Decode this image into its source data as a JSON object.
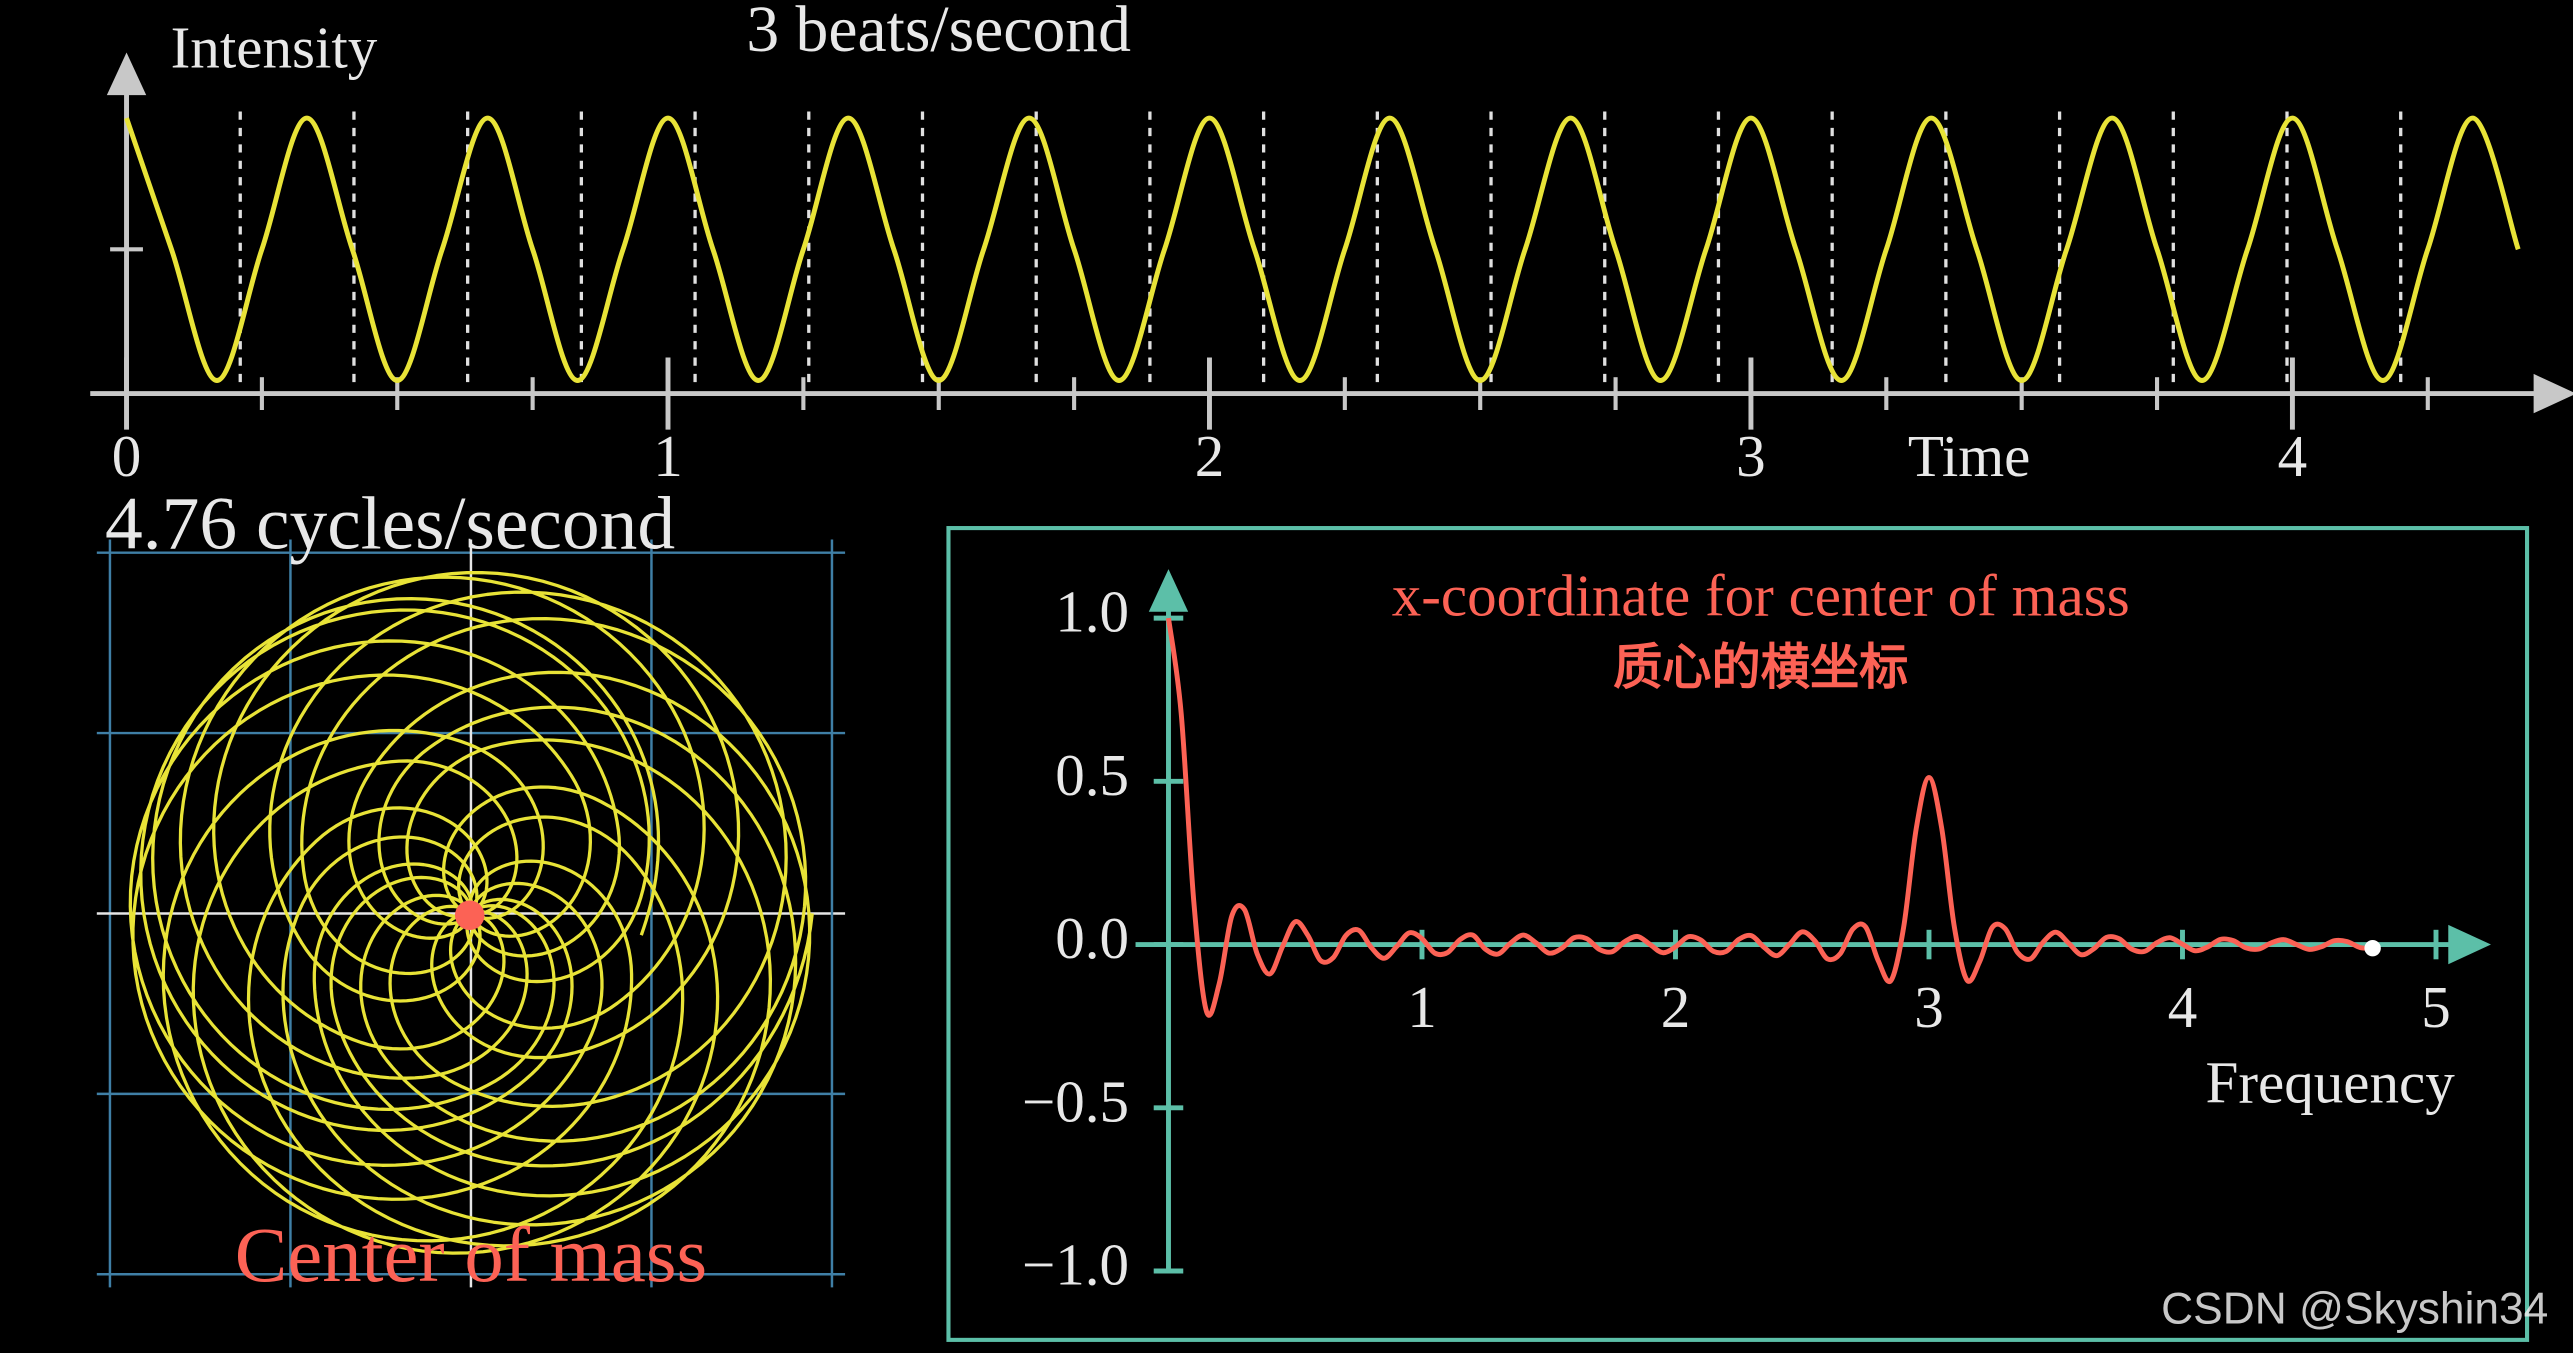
{
  "chart_data": [
    {
      "type": "line",
      "title": "3 beats/second",
      "ylabel": "Intensity",
      "xlabel": "Time",
      "x": [
        0,
        0.083,
        0.167,
        0.25,
        0.333,
        0.417,
        0.5,
        0.583,
        0.667,
        0.75,
        0.833,
        0.917,
        1,
        1.083,
        1.167,
        1.25,
        1.333,
        1.417,
        1.5,
        1.583,
        1.667,
        1.75,
        1.833,
        1.917,
        2,
        2.083,
        2.167,
        2.25,
        2.333,
        2.417,
        2.5,
        2.583,
        2.667,
        2.75,
        2.833,
        2.917,
        3,
        3.083,
        3.167,
        3.25,
        3.333,
        3.417,
        3.5,
        3.583,
        3.667,
        3.75,
        3.833,
        3.917,
        4,
        4.083,
        4.167,
        4.25,
        4.333,
        4.417
      ],
      "values": [
        1,
        0.5,
        0,
        0.5,
        1,
        0.5,
        0,
        0.5,
        1,
        0.5,
        0,
        0.5,
        1,
        0.5,
        0,
        0.5,
        1,
        0.5,
        0,
        0.5,
        1,
        0.5,
        0,
        0.5,
        1,
        0.5,
        0,
        0.5,
        1,
        0.5,
        0,
        0.5,
        1,
        0.5,
        0,
        0.5,
        1,
        0.5,
        0,
        0.5,
        1,
        0.5,
        0,
        0.5,
        1,
        0.5,
        0,
        0.5,
        1,
        0.5,
        0,
        0.5,
        1,
        0.5
      ],
      "color": "#e8e337",
      "axis_color": "#c8c8c8",
      "xlim": [
        -0.067,
        4.5
      ],
      "ylim": [
        -0.05,
        1.2
      ],
      "xticks": [
        0,
        1,
        2,
        3,
        4
      ],
      "minor_xticks": [
        0.25,
        0.5,
        0.75,
        1.25,
        1.5,
        1.75,
        2.25,
        2.5,
        2.75,
        3.25,
        3.5,
        3.75,
        4.25
      ],
      "minor_yticks": [
        0.5
      ],
      "vlines": [
        0.21,
        0.42,
        0.63,
        0.84,
        1.05,
        1.26,
        1.47,
        1.68,
        1.89,
        2.1,
        2.31,
        2.52,
        2.73,
        2.94,
        3.15,
        3.36,
        3.57,
        3.78,
        3.99,
        4.2
      ]
    },
    {
      "type": "winding",
      "title": "4.76 cycles/second",
      "frequency": 4.76,
      "annotation": "Center of mass",
      "color": "#e8e337",
      "marker_color": "#fc6255",
      "grid": true
    },
    {
      "type": "line",
      "title": "x-coordinate for center of mass",
      "subtitle": "质心的横坐标",
      "xlabel": "Frequency",
      "x": [
        0,
        0.05,
        0.1,
        0.15,
        0.2,
        0.25,
        0.3,
        0.35,
        0.4,
        0.45,
        0.5,
        0.55,
        0.6,
        0.65,
        0.7,
        0.75,
        0.8,
        0.85,
        0.9,
        0.95,
        1,
        1.05,
        1.1,
        1.15,
        1.2,
        1.25,
        1.3,
        1.35,
        1.4,
        1.45,
        1.5,
        1.55,
        1.6,
        1.65,
        1.7,
        1.75,
        1.8,
        1.85,
        1.9,
        1.95,
        2,
        2.05,
        2.1,
        2.15,
        2.2,
        2.25,
        2.3,
        2.35,
        2.4,
        2.45,
        2.5,
        2.55,
        2.6,
        2.65,
        2.7,
        2.75,
        2.8,
        2.85,
        2.9,
        2.95,
        3,
        3.05,
        3.1,
        3.15,
        3.2,
        3.25,
        3.3,
        3.35,
        3.4,
        3.45,
        3.5,
        3.55,
        3.6,
        3.65,
        3.7,
        3.75,
        3.8,
        3.85,
        3.9,
        3.95,
        4,
        4.05,
        4.1,
        4.15,
        4.2,
        4.25,
        4.3,
        4.35,
        4.4,
        4.45,
        4.5,
        4.55,
        4.6,
        4.65,
        4.7,
        4.75
      ],
      "values": [
        1.0,
        0.709,
        0.13,
        -0.205,
        -0.12,
        0.088,
        0.107,
        -0.029,
        -0.09,
        -0.006,
        0.07,
        0.028,
        -0.049,
        -0.04,
        0.028,
        0.044,
        -0.009,
        -0.042,
        -0.006,
        0.036,
        0.018,
        -0.026,
        -0.025,
        0.015,
        0.029,
        -0.014,
        -0.029,
        0.005,
        0.029,
        0.005,
        -0.026,
        -0.012,
        0.021,
        0.018,
        -0.015,
        -0.022,
        0.009,
        0.025,
        0.0,
        -0.025,
        -0.007,
        0.024,
        0.014,
        -0.021,
        -0.021,
        0.016,
        0.027,
        -0.009,
        -0.034,
        0.001,
        0.039,
        0.011,
        -0.044,
        -0.028,
        0.048,
        0.054,
        -0.05,
        -0.11,
        0.053,
        0.357,
        0.512,
        0.357,
        0.054,
        -0.109,
        -0.052,
        0.053,
        0.049,
        -0.025,
        -0.044,
        0.007,
        0.038,
        0.005,
        -0.031,
        -0.013,
        0.022,
        0.018,
        -0.014,
        -0.021,
        0.006,
        0.021,
        0.001,
        -0.019,
        -0.007,
        0.016,
        0.012,
        -0.01,
        -0.014,
        0.005,
        0.015,
        0.0,
        -0.015,
        -0.006,
        0.012,
        0.009,
        -0.009,
        -0.011
      ],
      "color": "#fc6255",
      "axis_color": "#5cbfa8",
      "xlim": [
        -0.13,
        5.165
      ],
      "ylim": [
        -1.0,
        1.11
      ],
      "xticks": [
        1,
        2,
        3,
        4,
        5
      ],
      "yticks": [
        {
          "value": -1.0,
          "label": "−1.0"
        },
        {
          "value": -0.5,
          "label": "−0.5"
        },
        {
          "value": 0.0,
          "label": "0.0"
        },
        {
          "value": 0.5,
          "label": "0.5"
        },
        {
          "value": 1.0,
          "label": "1.0"
        }
      ]
    }
  ],
  "watermark": "CSDN @Skyshin34"
}
